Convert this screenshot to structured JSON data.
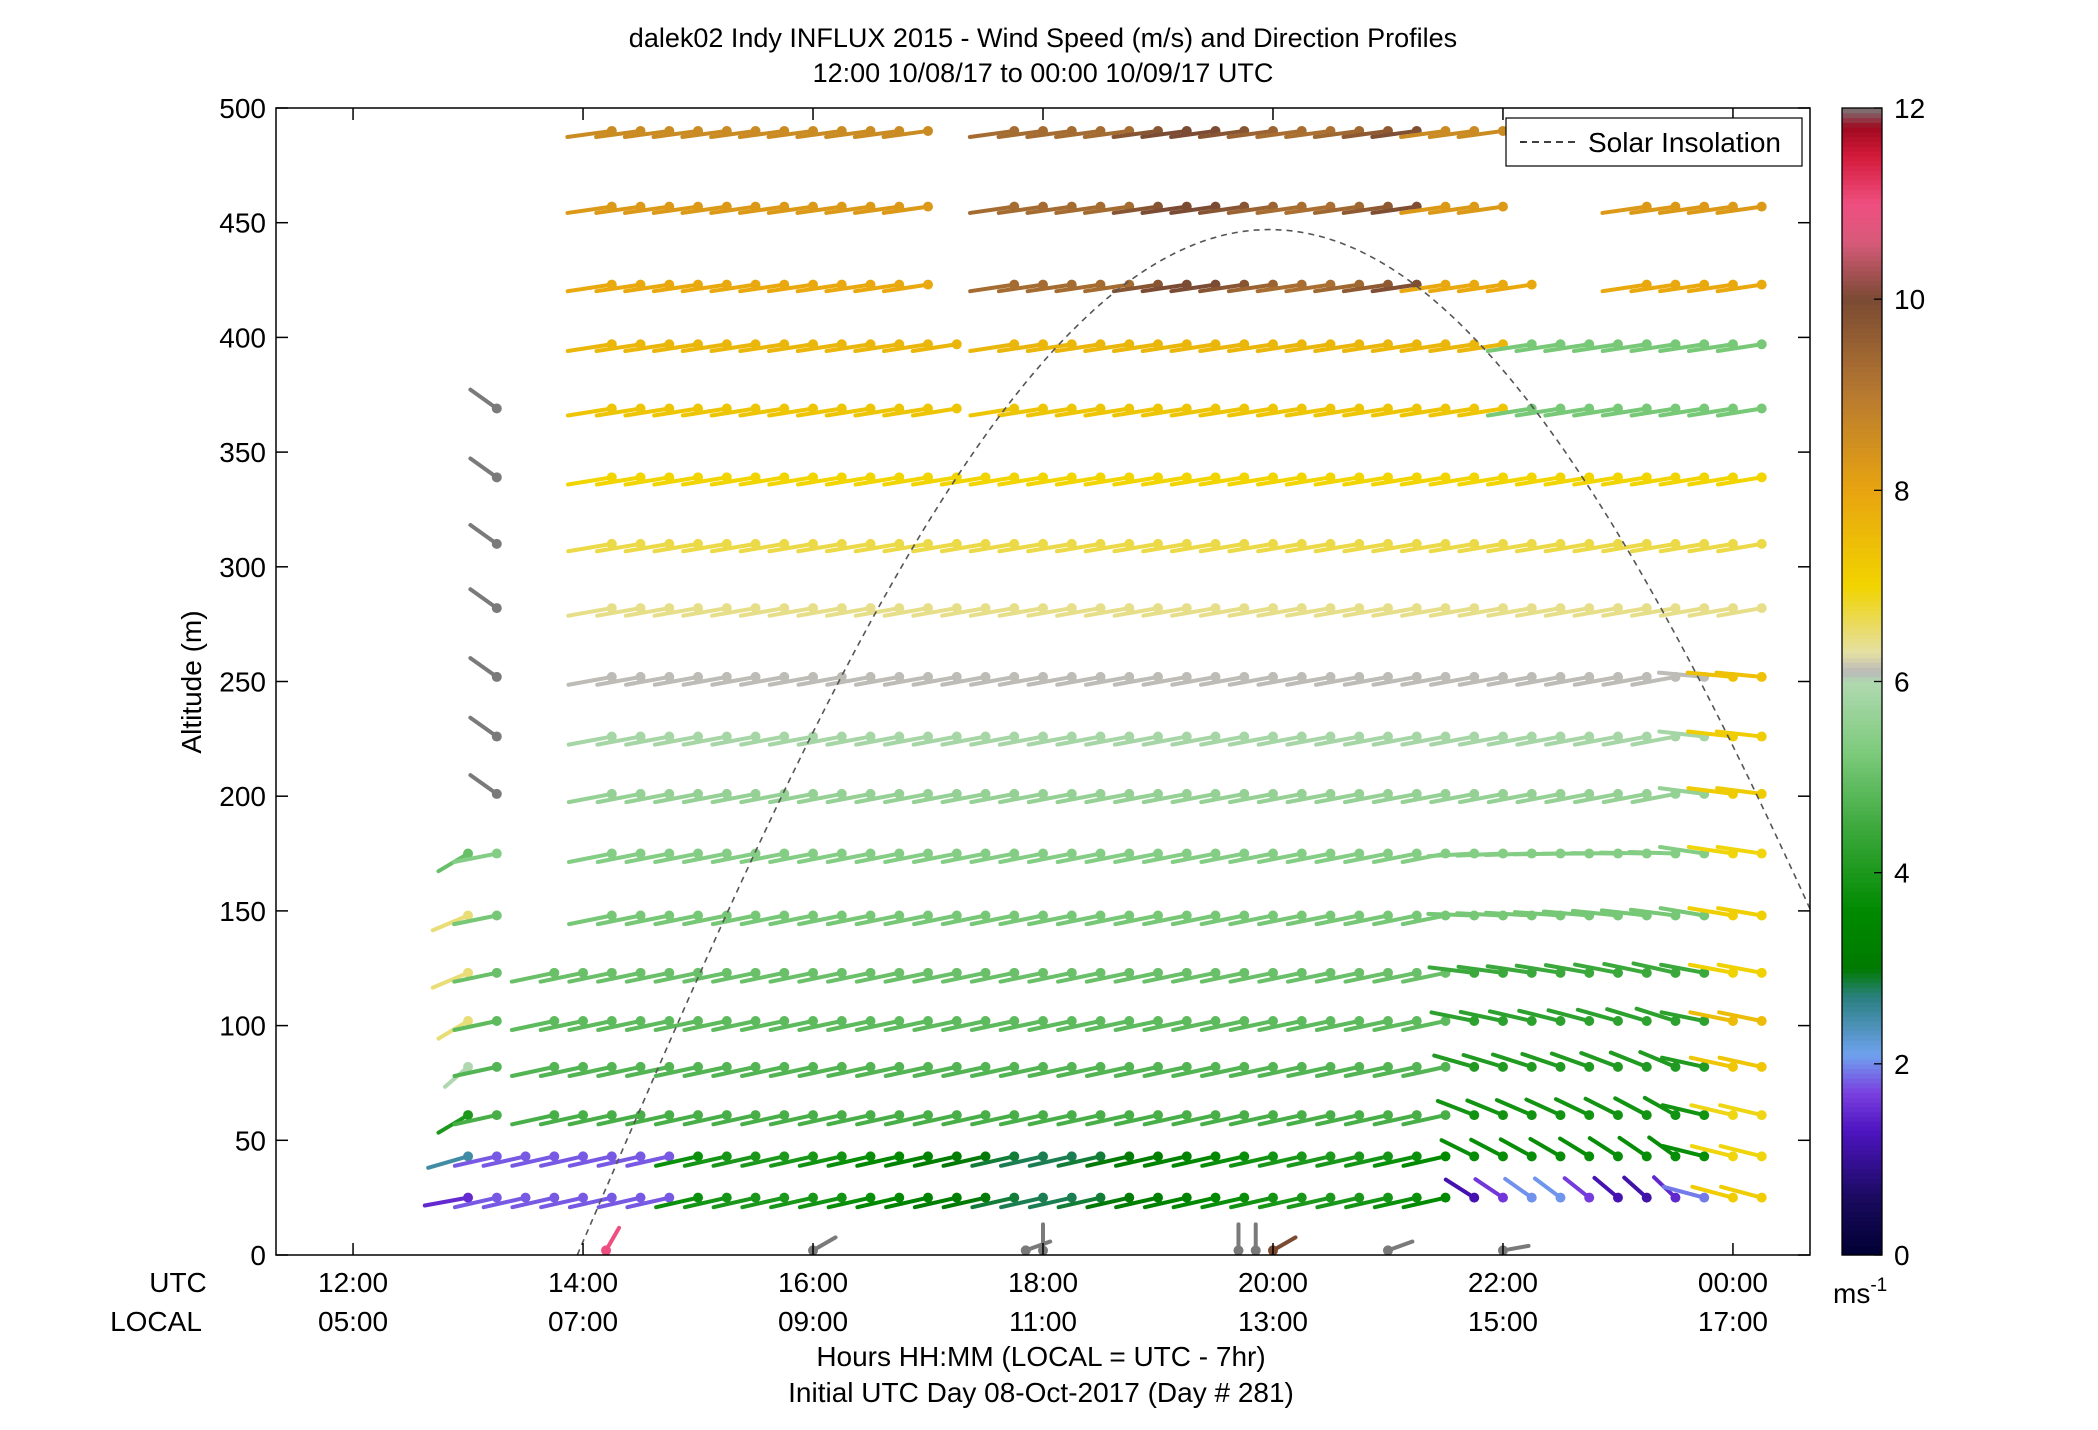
{
  "chart_data": {
    "type": "wind-barb-profile",
    "title": "dalek02 Indy INFLUX 2015 - Wind Speed (m/s) and Direction Profiles",
    "subtitle": "12:00 10/08/17 to 00:00 10/09/17  UTC",
    "ylabel": "Altitude (m)",
    "xlabel": "Hours HH:MM  (LOCAL = UTC - 7hr)",
    "xlabel2": "Initial UTC Day 08-Oct-2017 (Day # 281)",
    "ylim": [
      0,
      500
    ],
    "xlim_hours": [
      11.33,
      24.67
    ],
    "yticks": [
      "0",
      "50",
      "100",
      "150",
      "200",
      "250",
      "300",
      "350",
      "400",
      "450",
      "500"
    ],
    "xaxis_row_labels": {
      "utc": "UTC",
      "local": "LOCAL"
    },
    "xticks_utc": [
      "12:00",
      "14:00",
      "16:00",
      "18:00",
      "20:00",
      "22:00",
      "00:00"
    ],
    "xticks_local": [
      "05:00",
      "07:00",
      "09:00",
      "11:00",
      "13:00",
      "15:00",
      "17:00"
    ],
    "legend": {
      "label": "Solar Insolation",
      "placement": "top-right"
    },
    "colorbar": {
      "range": [
        0,
        12
      ],
      "ticks": [
        "0",
        "2",
        "4",
        "6",
        "8",
        "10",
        "12"
      ],
      "unit_base": "ms",
      "unit_exp": "-1",
      "stops": [
        {
          "v": 0.0,
          "c": "#000033"
        },
        {
          "v": 0.6,
          "c": "#1a0a5e"
        },
        {
          "v": 1.3,
          "c": "#4d14c0"
        },
        {
          "v": 1.7,
          "c": "#7a40e0"
        },
        {
          "v": 2.1,
          "c": "#6fa2ef"
        },
        {
          "v": 2.7,
          "c": "#2a8080"
        },
        {
          "v": 3.0,
          "c": "#007a00"
        },
        {
          "v": 3.6,
          "c": "#008a00"
        },
        {
          "v": 4.5,
          "c": "#3faa3f"
        },
        {
          "v": 5.3,
          "c": "#7fcc7f"
        },
        {
          "v": 6.0,
          "c": "#b0d8b0"
        },
        {
          "v": 6.1,
          "c": "#b8b8b8"
        },
        {
          "v": 6.3,
          "c": "#e5e0a5"
        },
        {
          "v": 7.0,
          "c": "#f1d400"
        },
        {
          "v": 8.0,
          "c": "#e8a410"
        },
        {
          "v": 9.0,
          "c": "#b87a30"
        },
        {
          "v": 10.0,
          "c": "#7a4a33"
        },
        {
          "v": 10.6,
          "c": "#d75a7a"
        },
        {
          "v": 11.0,
          "c": "#ef4f80"
        },
        {
          "v": 11.5,
          "c": "#d41a3a"
        },
        {
          "v": 11.8,
          "c": "#a00a20"
        },
        {
          "v": 12.0,
          "c": "#7a7a7a"
        }
      ]
    },
    "solar_insolation": {
      "start_hour": 13.95,
      "peak_hour": 19.97,
      "end_hour": 24.67,
      "peak_altitude": 447,
      "end_altitude": 147
    },
    "barb_altitudes": [
      25,
      43,
      61,
      82,
      102,
      123,
      148,
      175,
      201,
      226,
      252,
      282,
      310,
      339,
      369,
      397,
      423,
      457,
      490
    ],
    "profiles": [
      {
        "hour": 13.0,
        "alt_max": 175,
        "dir": [
          290,
          300,
          320,
          330,
          320,
          310,
          310,
          320
        ],
        "spd": [
          1.5,
          2.5,
          4.0,
          6.0,
          6.5,
          6.5,
          6.5,
          5.0
        ]
      },
      {
        "hour": 13.25,
        "alt_max": 369,
        "gray_from": 201
      },
      {
        "hour": 13.5,
        "alt_max": 43
      },
      {
        "hour": 13.75,
        "alt_max": 123
      },
      {
        "hour": 14.0,
        "alt_max": 123
      },
      {
        "hour": 14.25,
        "alt_max": 490
      },
      {
        "hour": 14.5,
        "alt_max": 490
      },
      {
        "hour": 14.75,
        "alt_max": 490
      },
      {
        "hour": 15.0,
        "alt_max": 490
      },
      {
        "hour": 15.25,
        "alt_max": 490
      },
      {
        "hour": 15.5,
        "alt_max": 490
      },
      {
        "hour": 15.75,
        "alt_max": 490
      },
      {
        "hour": 16.0,
        "alt_max": 490
      },
      {
        "hour": 16.25,
        "alt_max": 490
      },
      {
        "hour": 16.5,
        "alt_max": 490
      },
      {
        "hour": 16.75,
        "alt_max": 490
      },
      {
        "hour": 17.0,
        "alt_max": 490
      },
      {
        "hour": 17.25,
        "alt_max": 397
      },
      {
        "hour": 17.5,
        "alt_max": 339
      },
      {
        "hour": 17.75,
        "alt_max": 490
      },
      {
        "hour": 18.0,
        "alt_max": 490
      },
      {
        "hour": 18.25,
        "alt_max": 490
      },
      {
        "hour": 18.5,
        "alt_max": 490
      },
      {
        "hour": 18.75,
        "alt_max": 490
      },
      {
        "hour": 19.0,
        "alt_max": 490
      },
      {
        "hour": 19.25,
        "alt_max": 490
      },
      {
        "hour": 19.5,
        "alt_max": 490
      },
      {
        "hour": 19.75,
        "alt_max": 490
      },
      {
        "hour": 20.0,
        "alt_max": 490
      },
      {
        "hour": 20.25,
        "alt_max": 490
      },
      {
        "hour": 20.5,
        "alt_max": 490
      },
      {
        "hour": 20.75,
        "alt_max": 490
      },
      {
        "hour": 21.0,
        "alt_max": 490
      },
      {
        "hour": 21.25,
        "alt_max": 490
      },
      {
        "hour": 21.5,
        "alt_max": 490
      },
      {
        "hour": 21.75,
        "alt_max": 490
      },
      {
        "hour": 22.0,
        "alt_max": 490
      },
      {
        "hour": 22.25,
        "alt_max": 423
      },
      {
        "hour": 22.5,
        "alt_max": 397
      },
      {
        "hour": 22.75,
        "alt_max": 397
      },
      {
        "hour": 23.0,
        "alt_max": 397
      },
      {
        "hour": 23.25,
        "alt_max": 457
      },
      {
        "hour": 23.5,
        "alt_max": 457
      },
      {
        "hour": 23.75,
        "alt_max": 457
      },
      {
        "hour": 24.0,
        "alt_max": 457
      },
      {
        "hour": 24.25,
        "alt_max": 457
      }
    ],
    "surface_barbs": [
      {
        "hour": 14.2,
        "spd": 11.0,
        "dir": 210
      },
      {
        "hour": 16.0,
        "spd": 6.0,
        "dir": 300
      },
      {
        "hour": 17.85,
        "spd": 6.0,
        "dir": 250
      },
      {
        "hour": 18.0,
        "spd": 6.0,
        "dir": 0
      },
      {
        "hour": 19.7,
        "spd": 6.0,
        "dir": 0
      },
      {
        "hour": 19.85,
        "spd": 6.0,
        "dir": 0
      },
      {
        "hour": 20.0,
        "spd": 10.0,
        "dir": 240
      },
      {
        "hour": 21.0,
        "spd": 6.0,
        "dir": 290
      },
      {
        "hour": 22.0,
        "spd": 8.5,
        "dir": 280
      }
    ]
  }
}
